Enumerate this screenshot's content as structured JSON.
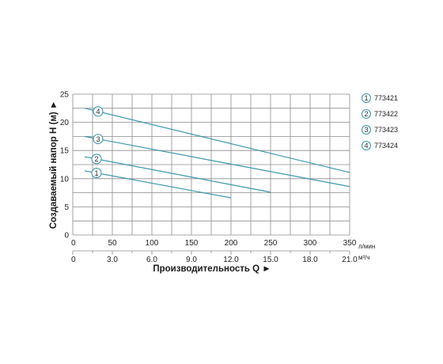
{
  "chart_data": {
    "type": "line",
    "ylabel": "Создаваемый напор H (м) ►",
    "xlabel": "Производительность Q ►",
    "x_unit": "л/мин",
    "x2_unit": "м³/ч",
    "xlim": [
      0,
      350
    ],
    "ylim": [
      0,
      25
    ],
    "x_ticks": [
      0,
      50,
      100,
      150,
      200,
      250,
      300,
      350
    ],
    "y_ticks": [
      0,
      5,
      10,
      15,
      20,
      25
    ],
    "x2_ticks": [
      "0",
      "3.0",
      "6.0",
      "9.0",
      "12.0",
      "15.0",
      "18.0",
      "21.0"
    ],
    "grid": true,
    "legend_position": "right",
    "series": [
      {
        "name": "773421",
        "marker": "1",
        "x": [
          15,
          200
        ],
        "y": [
          11.4,
          6.6
        ],
        "marker_at": 30
      },
      {
        "name": "773422",
        "marker": "2",
        "x": [
          15,
          250
        ],
        "y": [
          13.9,
          7.6
        ],
        "marker_at": 30
      },
      {
        "name": "773423",
        "marker": "3",
        "x": [
          15,
          350
        ],
        "y": [
          17.5,
          8.6
        ],
        "marker_at": 32
      },
      {
        "name": "773424",
        "marker": "4",
        "x": [
          15,
          350
        ],
        "y": [
          22.5,
          11.1
        ],
        "marker_at": 32
      }
    ],
    "colors": {
      "line": "#3a97ae",
      "grid": "#8c8c8c",
      "marker_border": "#3a97ae"
    }
  }
}
